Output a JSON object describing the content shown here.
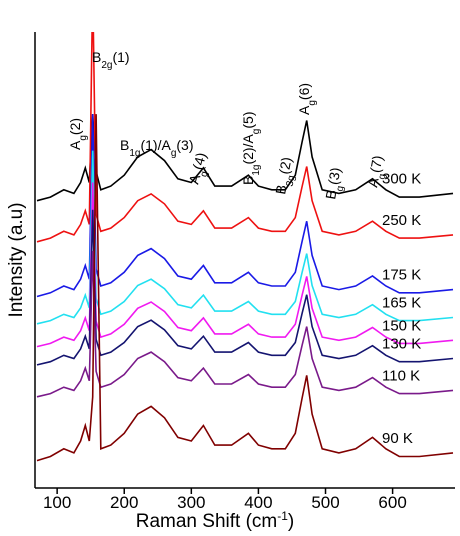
{
  "chart_data": {
    "type": "line",
    "x_label": {
      "parts": [
        "Raman Shift (cm",
        "-1",
        ")"
      ]
    },
    "y_label": "Intensity (a.u)",
    "xlim": [
      67,
      693
    ],
    "xticks": [
      100,
      200,
      300,
      400,
      500,
      600
    ],
    "ylim": [
      0,
      100
    ],
    "x": [
      70,
      90,
      110,
      125,
      135,
      142,
      148,
      153,
      158,
      165,
      180,
      200,
      220,
      240,
      260,
      280,
      300,
      318,
      335,
      360,
      385,
      400,
      420,
      440,
      455,
      465,
      472,
      480,
      495,
      520,
      545,
      570,
      590,
      610,
      640,
      690
    ],
    "series": [
      {
        "name": "300 K",
        "color": "#000000",
        "values": [
          63,
          63.8,
          65.4,
          64.6,
          67,
          70.2,
          67,
          82,
          69.4,
          65.4,
          66.2,
          68.6,
          72.6,
          74.2,
          71.8,
          67.8,
          67,
          70.2,
          66.2,
          66.2,
          68.6,
          66.2,
          65.4,
          65.4,
          68.6,
          75.8,
          80.6,
          72.6,
          65.4,
          64.6,
          65.4,
          67.8,
          65.4,
          63.8,
          63.8,
          64.6
        ]
      },
      {
        "name": "250 K",
        "color": "#ee1111",
        "values": [
          54,
          54.8,
          56.3,
          55.5,
          57.8,
          60.8,
          57.8,
          110,
          60,
          56.3,
          57,
          59.3,
          63,
          64.5,
          62.3,
          58.5,
          57.8,
          60.8,
          57,
          57,
          59.3,
          57,
          56.3,
          56.3,
          59.3,
          66,
          70.5,
          63,
          56.3,
          55.5,
          56.3,
          58.5,
          56.3,
          54.8,
          54.8,
          55.5
        ]
      },
      {
        "name": "175 K",
        "color": "#1a1ae6",
        "values": [
          42,
          42.8,
          44.3,
          43.5,
          45.8,
          48.8,
          45.8,
          82,
          48,
          44.3,
          45,
          47.3,
          51,
          52.5,
          50.3,
          46.5,
          45.8,
          48.8,
          45,
          45,
          47.3,
          45,
          44.3,
          44.3,
          47.3,
          54,
          58.5,
          51,
          44.3,
          43.5,
          44.3,
          46.5,
          44.3,
          42.8,
          42.8,
          43.5
        ]
      },
      {
        "name": "165 K",
        "color": "#22e0f0",
        "values": [
          36,
          36.7,
          38.1,
          37.4,
          39.5,
          42.3,
          39.5,
          74,
          41.6,
          38.1,
          38.8,
          40.9,
          44.4,
          45.8,
          43.7,
          40.2,
          39.5,
          42.3,
          38.8,
          38.8,
          40.9,
          38.8,
          38.1,
          38.1,
          40.9,
          47.2,
          51.4,
          44.4,
          38.1,
          37.4,
          38.1,
          40.2,
          38.1,
          36.7,
          36.7,
          37.4
        ]
      },
      {
        "name": "150 K",
        "color": "#f01af0",
        "values": [
          31,
          31.7,
          33.1,
          32.4,
          34.5,
          37.3,
          34.5,
          67,
          36.6,
          33.1,
          33.8,
          35.9,
          39.4,
          40.8,
          38.7,
          35.2,
          34.5,
          37.3,
          33.8,
          33.8,
          35.9,
          33.8,
          33.1,
          33.1,
          35.9,
          42.2,
          46.4,
          39.4,
          33.1,
          32.4,
          33.1,
          35.2,
          33.1,
          31.7,
          31.7,
          32.4
        ]
      },
      {
        "name": "130 K",
        "color": "#141470",
        "values": [
          27,
          27.7,
          29.1,
          28.4,
          30.5,
          33.3,
          30.5,
          61,
          32.6,
          29.1,
          29.8,
          31.9,
          35.4,
          36.8,
          34.7,
          31.2,
          30.5,
          33.3,
          29.8,
          29.8,
          31.9,
          29.8,
          29.1,
          29.1,
          31.9,
          38.2,
          42.4,
          35.4,
          29.1,
          28.4,
          29.1,
          31.2,
          29.1,
          27.7,
          27.7,
          28.4
        ]
      },
      {
        "name": "110 K",
        "color": "#7a1a8a",
        "values": [
          20,
          20.7,
          22.1,
          21.4,
          23.5,
          26.3,
          23.5,
          52,
          25.6,
          22.1,
          22.8,
          24.9,
          28.4,
          29.8,
          27.7,
          24.2,
          23.5,
          26.3,
          22.8,
          22.8,
          24.9,
          22.8,
          22.1,
          22.1,
          24.9,
          31.2,
          35.4,
          28.4,
          22.1,
          21.4,
          22.1,
          24.2,
          22.1,
          20.7,
          20.7,
          21.4
        ]
      },
      {
        "name": "90 K",
        "color": "#800000",
        "values": [
          6,
          6.9,
          8.6,
          7.7,
          10.3,
          13.7,
          10.3,
          20,
          82,
          8.6,
          9.4,
          12,
          16.2,
          17.9,
          15.4,
          11.1,
          10.3,
          13.7,
          9.4,
          9.4,
          12,
          9.4,
          8.6,
          8.6,
          12,
          19.6,
          24.7,
          16.2,
          8.6,
          7.7,
          8.6,
          11.1,
          8.6,
          6.9,
          6.9,
          7.7
        ]
      }
    ],
    "annotations": [
      {
        "parts": [
          "A",
          "g",
          "(2)"
        ]
      },
      {
        "parts": [
          "B",
          "2g",
          "(1)"
        ]
      },
      {
        "parts": [
          "B",
          "1g",
          "(1)/A",
          "g",
          "(3)"
        ]
      },
      {
        "parts": [
          "A",
          "g",
          "(4)"
        ]
      },
      {
        "parts": [
          "B",
          "1g",
          "(2)/A",
          "g",
          "(5)"
        ]
      },
      {
        "parts": [
          "B",
          "3g",
          "(2)"
        ]
      },
      {
        "parts": [
          "A",
          "g",
          "(6)"
        ]
      },
      {
        "parts": [
          "B",
          "g",
          "(3)"
        ]
      },
      {
        "parts": [
          "A",
          "g",
          "(7)"
        ]
      }
    ]
  }
}
